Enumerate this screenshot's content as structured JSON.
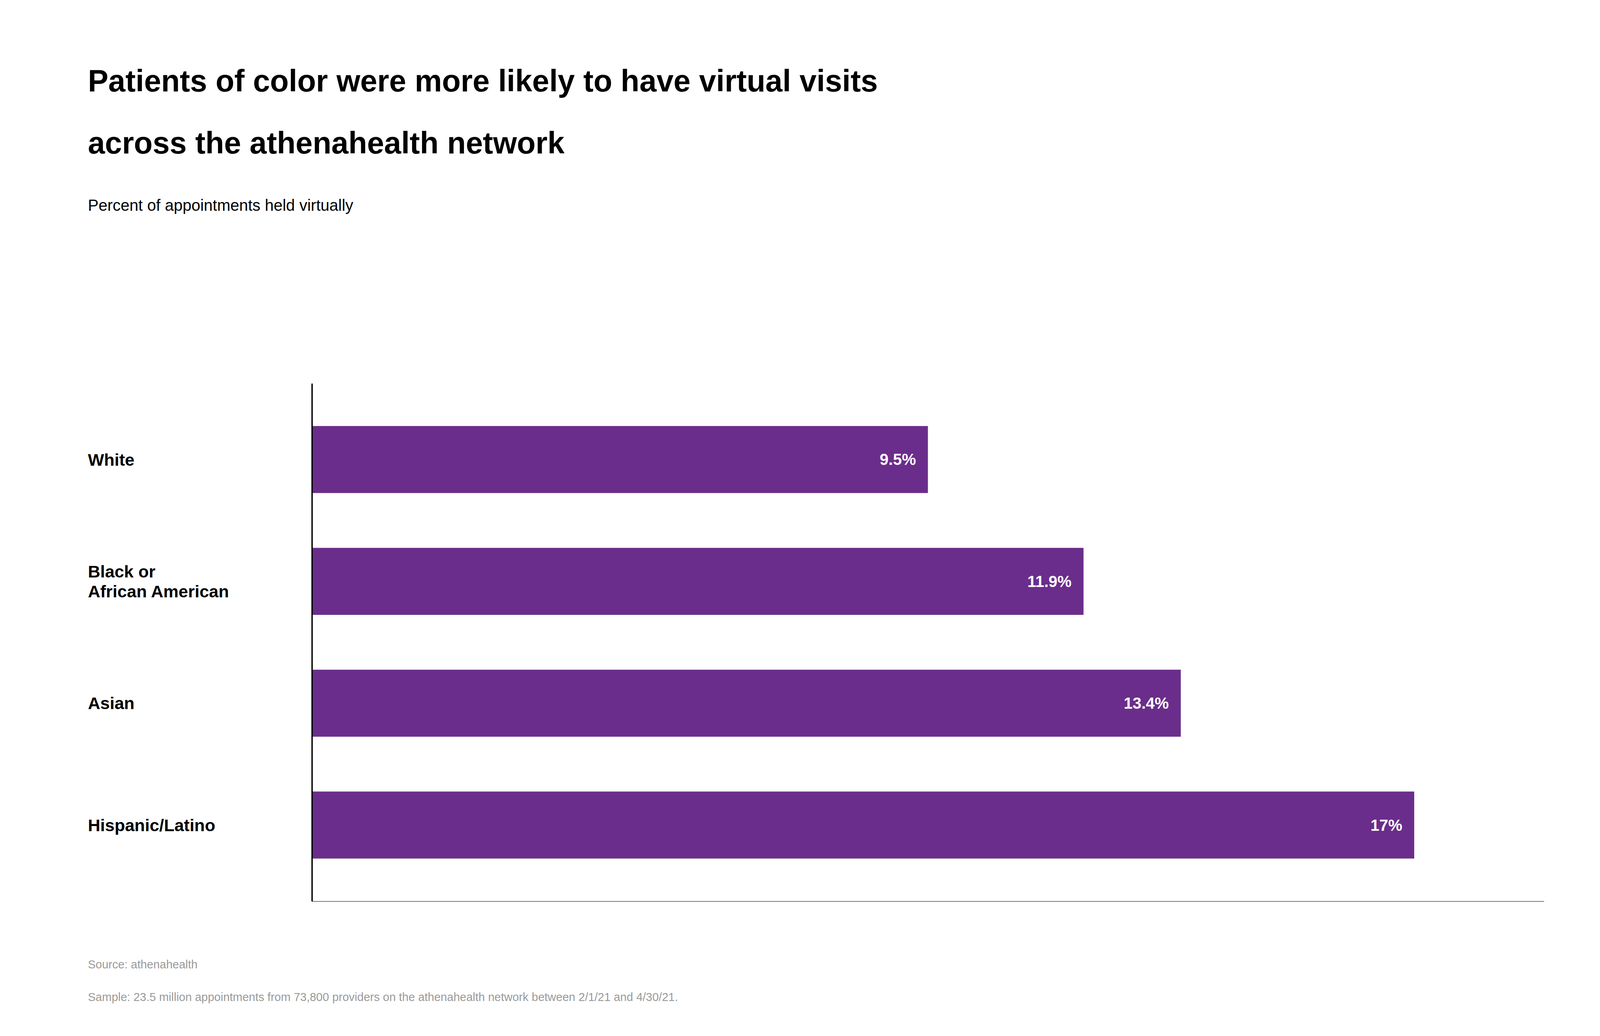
{
  "chart_data": {
    "type": "bar",
    "orientation": "horizontal",
    "title": "Patients of color were more likely to have virtual visits\nacross the athenahealth network",
    "subtitle": "Percent of appointments held virtually",
    "categories": [
      "White",
      "Black or\nAfrican American",
      "Asian",
      "Hispanic/Latino"
    ],
    "values": [
      9.5,
      11.9,
      13.4,
      17.0
    ],
    "value_labels": [
      "9.5%",
      "11.9%",
      "13.4%",
      "17%"
    ],
    "data_labels": true,
    "color": "#6b2d8b",
    "xlim": [
      0,
      19
    ],
    "grid": false,
    "tick_labels": "y",
    "annotations": [
      "Source: athenahealth",
      "Sample: 23.5 million appointments from 73,800 providers on the athenahealth network between 2/1/21 and 4/30/21."
    ]
  }
}
